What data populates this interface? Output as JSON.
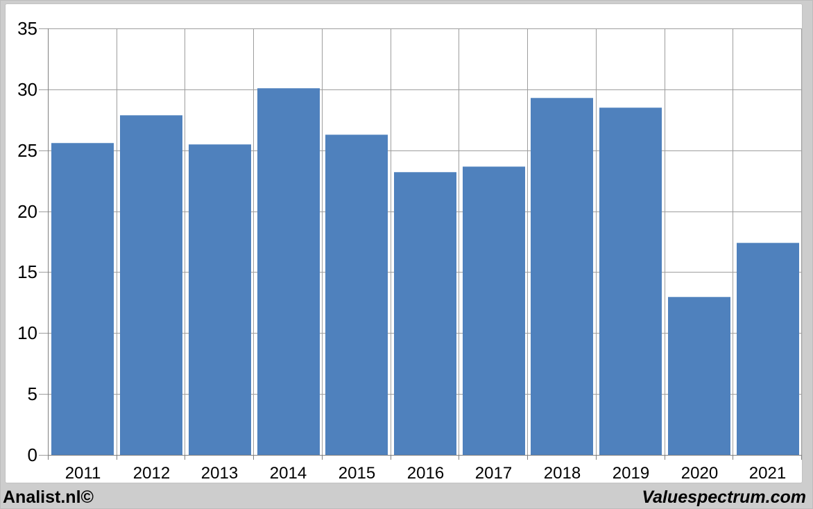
{
  "chart_data": {
    "type": "bar",
    "categories": [
      "2011",
      "2012",
      "2013",
      "2014",
      "2015",
      "2016",
      "2017",
      "2018",
      "2019",
      "2020",
      "2021"
    ],
    "values": [
      25.6,
      27.9,
      25.5,
      30.1,
      26.3,
      23.2,
      23.7,
      29.3,
      28.5,
      13.0,
      17.4
    ],
    "title": "",
    "xlabel": "",
    "ylabel": "",
    "ylim": [
      0,
      35
    ],
    "yticks": [
      0,
      5,
      10,
      15,
      20,
      25,
      30,
      35
    ],
    "grid": true,
    "legend": "none",
    "bar_color": "#4f81bd"
  },
  "colors": {
    "background": "#cdcdcd",
    "panel": "#ffffff",
    "gridline": "#9d9d9d",
    "axis": "#7f7f7f",
    "bar": "#4f81bd",
    "text": "#000000"
  },
  "footer": {
    "left": "Analist.nl©",
    "right": "Valuespectrum.com"
  }
}
